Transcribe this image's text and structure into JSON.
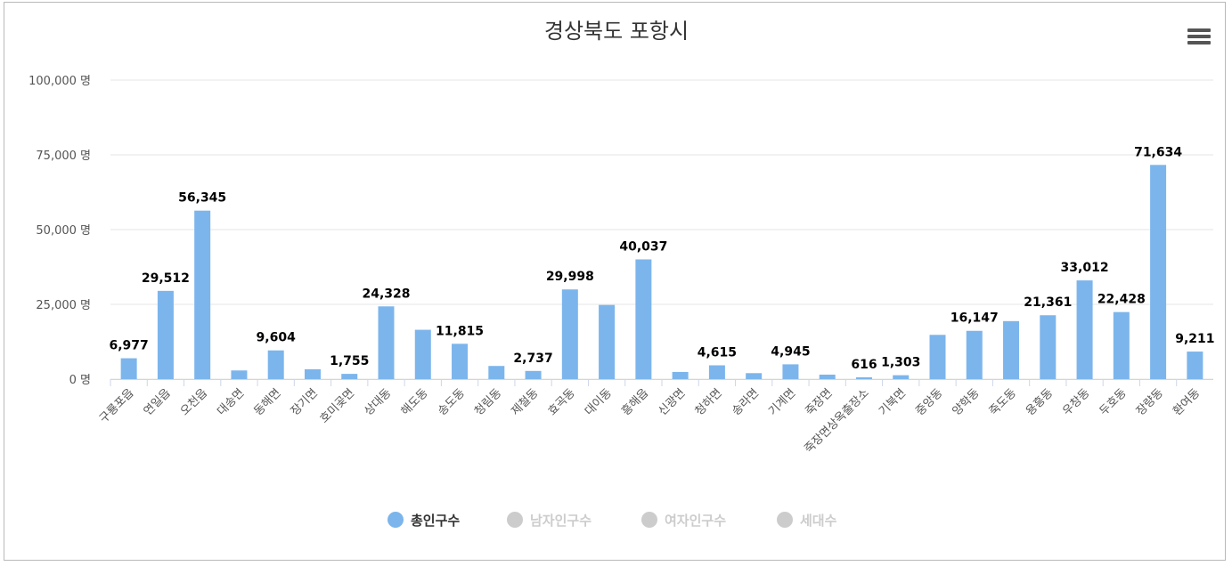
{
  "chart_data": {
    "type": "bar",
    "title": "경상북도 포항시",
    "y_unit": "명",
    "ylim": [
      0,
      100000
    ],
    "y_ticks": [
      0,
      25000,
      50000,
      75000,
      100000
    ],
    "y_tick_labels": [
      "0 명",
      "25,000 명",
      "50,000 명",
      "75,000 명",
      "100,000 명"
    ],
    "grid": true,
    "legend_position": "bottom",
    "categories": [
      "구룡포읍",
      "연일읍",
      "오천읍",
      "대송면",
      "동해면",
      "장기면",
      "호미곶면",
      "상대동",
      "해도동",
      "송도동",
      "청림동",
      "제철동",
      "효곡동",
      "대이동",
      "흥해읍",
      "신광면",
      "청하면",
      "송라면",
      "기계면",
      "죽장면",
      "죽장면상옥출장소",
      "기북면",
      "중앙동",
      "양학동",
      "죽도동",
      "용흥동",
      "우창동",
      "두호동",
      "장량동",
      "환여동"
    ],
    "series": [
      {
        "name": "총인구수",
        "color": "#7cb5ec",
        "visible": true,
        "values": [
          6977,
          29512,
          56345,
          2900,
          9604,
          3300,
          1755,
          24328,
          16500,
          11815,
          4400,
          2737,
          29998,
          24800,
          40037,
          2400,
          4615,
          2000,
          4945,
          1500,
          616,
          1303,
          14800,
          16147,
          19400,
          21361,
          33012,
          22428,
          71634,
          9211
        ],
        "labels": [
          "6,977",
          "29,512",
          "56,345",
          null,
          "9,604",
          null,
          "1,755",
          "24,328",
          null,
          "11,815",
          null,
          "2,737",
          "29,998",
          null,
          "40,037",
          null,
          "4,615",
          null,
          "4,945",
          null,
          "616",
          "1,303",
          null,
          "16,147",
          null,
          "21,361",
          "33,012",
          "22,428",
          "71,634",
          "9,211"
        ]
      },
      {
        "name": "남자인구수",
        "color": "#cccccc",
        "visible": false
      },
      {
        "name": "여자인구수",
        "color": "#cccccc",
        "visible": false
      },
      {
        "name": "세대수",
        "color": "#cccccc",
        "visible": false
      }
    ]
  },
  "legend_colors": {
    "active_text": "#333333",
    "inactive_text": "#cccccc"
  }
}
